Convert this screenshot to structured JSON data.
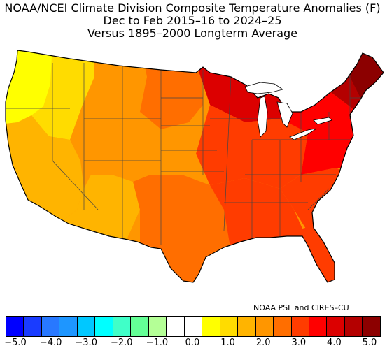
{
  "title": {
    "line1": "NOAA/NCEI Climate Division Composite Temperature Anomalies (F)",
    "line2": "Dec to Feb 2015–16 to 2024–25",
    "line3": "Versus 1895–2000 Longterm Average"
  },
  "credit": "NOAA PSL and CIRES–CU",
  "legend": {
    "colors": [
      "#0000ff",
      "#1a3cff",
      "#2878ff",
      "#1e96ff",
      "#00c8ff",
      "#00ffff",
      "#40ffc8",
      "#64ff96",
      "#b4ff96",
      "#ffffff",
      "#ffffff",
      "#ffff00",
      "#ffdc00",
      "#ffb400",
      "#ff9600",
      "#ff6e00",
      "#ff3c00",
      "#ff0000",
      "#dc0000",
      "#b40000",
      "#8c0000"
    ],
    "tick_labels": [
      "−5.0",
      "−4.0",
      "−3.0",
      "−2.0",
      "−1.0",
      "0.0",
      "1.0",
      "2.0",
      "3.0",
      "4.0",
      "5.0"
    ]
  },
  "map": {
    "regions": [
      {
        "name": "pacific-northwest-coast",
        "color": "#ffff00"
      },
      {
        "name": "pacific-northwest-interior",
        "color": "#ffdc00"
      },
      {
        "name": "california-nevada",
        "color": "#ffb400"
      },
      {
        "name": "northern-rockies",
        "color": "#ff9600"
      },
      {
        "name": "southwest",
        "color": "#ffb400"
      },
      {
        "name": "southern-rockies",
        "color": "#ff9600"
      },
      {
        "name": "northern-plains",
        "color": "#ff6e00"
      },
      {
        "name": "central-plains",
        "color": "#ff9600"
      },
      {
        "name": "southern-plains-texas",
        "color": "#ff6e00"
      },
      {
        "name": "gulf-coast",
        "color": "#ff3c00"
      },
      {
        "name": "upper-midwest",
        "color": "#dc0000"
      },
      {
        "name": "ohio-valley",
        "color": "#ff3c00"
      },
      {
        "name": "southeast",
        "color": "#ff3c00"
      },
      {
        "name": "florida",
        "color": "#ff3c00"
      },
      {
        "name": "mid-atlantic",
        "color": "#ff0000"
      },
      {
        "name": "northeast",
        "color": "#b40000"
      },
      {
        "name": "northern-new-england",
        "color": "#8c0000"
      }
    ]
  }
}
